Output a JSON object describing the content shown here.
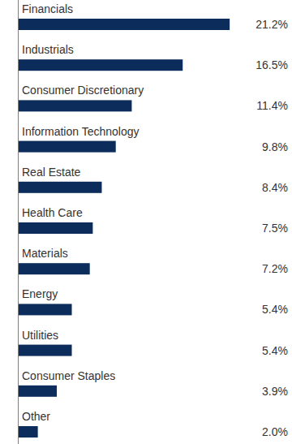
{
  "chart_data": {
    "type": "bar",
    "orientation": "horizontal",
    "categories": [
      "Financials",
      "Industrials",
      "Consumer Discretionary",
      "Information Technology",
      "Real Estate",
      "Health Care",
      "Materials",
      "Energy",
      "Utilities",
      "Consumer Staples",
      "Other"
    ],
    "values": [
      21.2,
      16.5,
      11.4,
      9.8,
      8.4,
      7.5,
      7.2,
      5.4,
      5.4,
      3.9,
      2.0
    ],
    "value_labels": [
      "21.2%",
      "16.5%",
      "11.4%",
      "9.8%",
      "8.4%",
      "7.5%",
      "7.2%",
      "5.4%",
      "5.4%",
      "3.9%",
      "2.0%"
    ],
    "color": "#0c2d5b",
    "xlim": [
      0,
      22
    ],
    "data_labels": true,
    "tick_labels": false,
    "grid": false
  }
}
